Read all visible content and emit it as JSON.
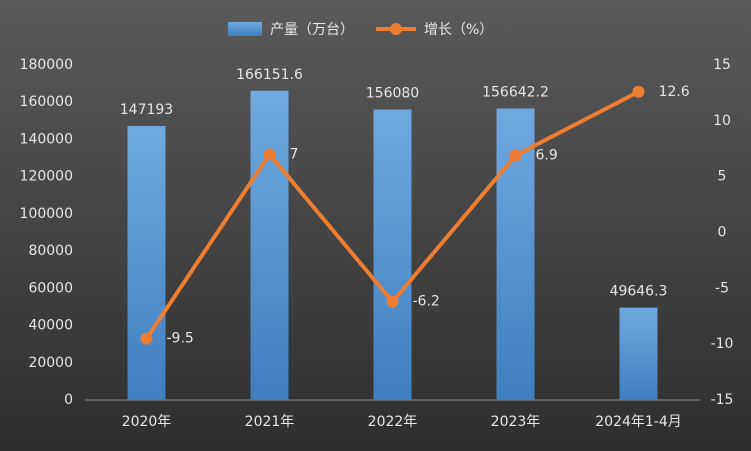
{
  "chart_data": {
    "type": "bar-line",
    "categories": [
      "2020年",
      "2021年",
      "2022年",
      "2023年",
      "2024年1-4月"
    ],
    "series": [
      {
        "name": "产量（万台）",
        "type": "bar",
        "color": "#5b9bd5",
        "values": [
          147193,
          166151.6,
          156080,
          156642.2,
          49646.3
        ]
      },
      {
        "name": "增长（%）",
        "type": "line",
        "axis": "y2",
        "color": "#ed7d31",
        "values": [
          -9.5,
          7,
          -6.2,
          6.9,
          12.6
        ]
      }
    ],
    "ylim": [
      0,
      180000
    ],
    "yticks": [
      0,
      20000,
      40000,
      60000,
      80000,
      100000,
      120000,
      140000,
      160000,
      180000
    ],
    "y2lim": [
      -15,
      15
    ],
    "y2ticks": [
      -15,
      -10,
      -5,
      0,
      5,
      10,
      15
    ],
    "legend": "top",
    "grid": false
  }
}
